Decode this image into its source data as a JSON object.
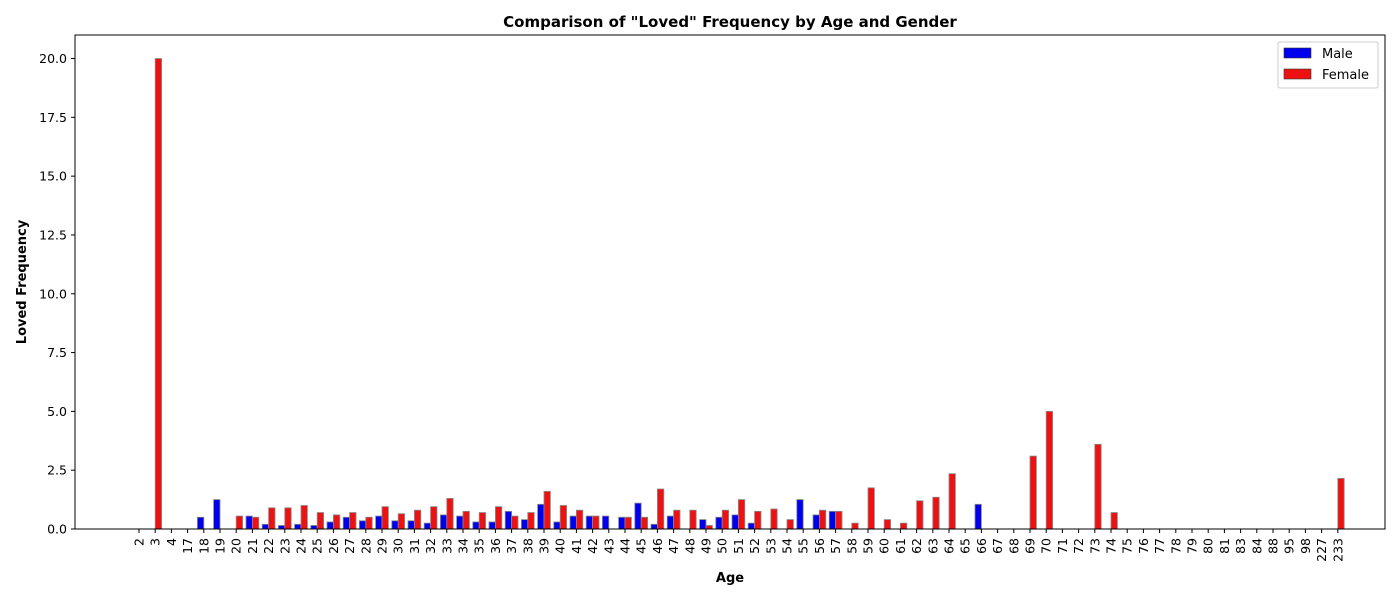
{
  "chart_data": {
    "type": "bar",
    "title": "Comparison of \"Loved\" Frequency by Age and Gender",
    "xlabel": "Age",
    "ylabel": "Loved Frequency",
    "ylim": [
      0,
      21
    ],
    "yticks": [
      "0.0",
      "2.5",
      "5.0",
      "7.5",
      "10.0",
      "12.5",
      "15.0",
      "17.5",
      "20.0"
    ],
    "legend_position": "top-right",
    "grid": false,
    "categories": [
      "2",
      "3",
      "4",
      "17",
      "18",
      "19",
      "20",
      "21",
      "22",
      "23",
      "24",
      "25",
      "26",
      "27",
      "28",
      "29",
      "30",
      "31",
      "32",
      "33",
      "34",
      "35",
      "36",
      "37",
      "38",
      "39",
      "40",
      "41",
      "42",
      "43",
      "44",
      "45",
      "46",
      "47",
      "48",
      "49",
      "50",
      "51",
      "52",
      "53",
      "54",
      "55",
      "56",
      "57",
      "58",
      "59",
      "60",
      "61",
      "62",
      "63",
      "64",
      "65",
      "66",
      "67",
      "68",
      "69",
      "70",
      "71",
      "72",
      "73",
      "74",
      "75",
      "76",
      "77",
      "78",
      "79",
      "80",
      "81",
      "83",
      "84",
      "88",
      "95",
      "98",
      "227",
      "233"
    ],
    "series": [
      {
        "name": "Male",
        "color": "#0000ee",
        "values": [
          0,
          0,
          0,
          0,
          0.5,
          1.25,
          0,
          0.55,
          0.2,
          0.15,
          0.2,
          0.15,
          0.3,
          0.5,
          0.35,
          0.55,
          0.35,
          0.35,
          0.25,
          0.6,
          0.55,
          0.3,
          0.3,
          0.75,
          0.4,
          1.05,
          0.3,
          0.55,
          0.55,
          0.55,
          0.5,
          1.1,
          0.2,
          0.55,
          0,
          0.4,
          0.5,
          0.6,
          0.25,
          0,
          0,
          1.25,
          0.6,
          0.75,
          0,
          0,
          0,
          0,
          0,
          0,
          0,
          0,
          1.05,
          0,
          0,
          0,
          0,
          0,
          0,
          0,
          0,
          0,
          0,
          0,
          0,
          0,
          0,
          0,
          0,
          0,
          0,
          0,
          0,
          0,
          0
        ]
      },
      {
        "name": "Female",
        "color": "#ee1111",
        "values": [
          0,
          20,
          0,
          0,
          0,
          0,
          0.55,
          0.5,
          0.9,
          0.9,
          1.0,
          0.7,
          0.6,
          0.7,
          0.5,
          0.95,
          0.65,
          0.8,
          0.95,
          1.3,
          0.75,
          0.7,
          0.95,
          0.55,
          0.7,
          1.6,
          1.0,
          0.8,
          0.55,
          0,
          0.5,
          0.5,
          1.7,
          0.8,
          0.8,
          0.15,
          0.8,
          1.25,
          0.75,
          0.85,
          0.4,
          0,
          0.8,
          0.75,
          0.25,
          1.75,
          0.4,
          0.25,
          1.2,
          1.35,
          2.35,
          0,
          0,
          0,
          0,
          3.1,
          5.0,
          0,
          0,
          3.6,
          0.7,
          0,
          0,
          0,
          0,
          0,
          0,
          0,
          0,
          0,
          0,
          0,
          0,
          0,
          2.15
        ]
      }
    ]
  }
}
